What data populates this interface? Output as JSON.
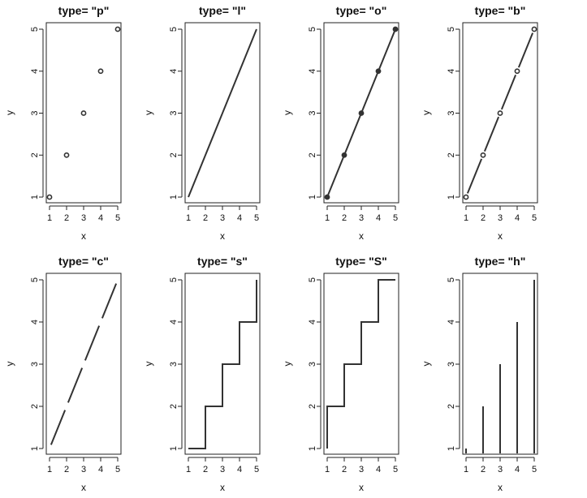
{
  "chart_data": [
    {
      "type": "scatter",
      "title": "type= \"p\"",
      "plot_type": "p",
      "xlabel": "x",
      "ylabel": "y",
      "x": [
        1,
        2,
        3,
        4,
        5
      ],
      "y": [
        1,
        2,
        3,
        4,
        5
      ],
      "xticks": [
        "1",
        "2",
        "3",
        "4",
        "5"
      ],
      "yticks": [
        "1",
        "2",
        "3",
        "4",
        "5"
      ],
      "xlim": [
        1,
        5
      ],
      "ylim": [
        1,
        5
      ]
    },
    {
      "type": "line",
      "title": "type= \"l\"",
      "plot_type": "l",
      "xlabel": "x",
      "ylabel": "y",
      "x": [
        1,
        2,
        3,
        4,
        5
      ],
      "y": [
        1,
        2,
        3,
        4,
        5
      ],
      "xticks": [
        "1",
        "2",
        "3",
        "4",
        "5"
      ],
      "yticks": [
        "1",
        "2",
        "3",
        "4",
        "5"
      ],
      "xlim": [
        1,
        5
      ],
      "ylim": [
        1,
        5
      ]
    },
    {
      "type": "line",
      "title": "type= \"o\"",
      "plot_type": "o",
      "xlabel": "x",
      "ylabel": "y",
      "x": [
        1,
        2,
        3,
        4,
        5
      ],
      "y": [
        1,
        2,
        3,
        4,
        5
      ],
      "xticks": [
        "1",
        "2",
        "3",
        "4",
        "5"
      ],
      "yticks": [
        "1",
        "2",
        "3",
        "4",
        "5"
      ],
      "xlim": [
        1,
        5
      ],
      "ylim": [
        1,
        5
      ]
    },
    {
      "type": "line",
      "title": "type= \"b\"",
      "plot_type": "b",
      "xlabel": "x",
      "ylabel": "y",
      "x": [
        1,
        2,
        3,
        4,
        5
      ],
      "y": [
        1,
        2,
        3,
        4,
        5
      ],
      "xticks": [
        "1",
        "2",
        "3",
        "4",
        "5"
      ],
      "yticks": [
        "1",
        "2",
        "3",
        "4",
        "5"
      ],
      "xlim": [
        1,
        5
      ],
      "ylim": [
        1,
        5
      ]
    },
    {
      "type": "line",
      "title": "type= \"c\"",
      "plot_type": "c",
      "xlabel": "x",
      "ylabel": "y",
      "x": [
        1,
        2,
        3,
        4,
        5
      ],
      "y": [
        1,
        2,
        3,
        4,
        5
      ],
      "xticks": [
        "1",
        "2",
        "3",
        "4",
        "5"
      ],
      "yticks": [
        "1",
        "2",
        "3",
        "4",
        "5"
      ],
      "xlim": [
        1,
        5
      ],
      "ylim": [
        1,
        5
      ]
    },
    {
      "type": "line",
      "title": "type= \"s\"",
      "plot_type": "s",
      "xlabel": "x",
      "ylabel": "y",
      "x": [
        1,
        2,
        3,
        4,
        5
      ],
      "y": [
        1,
        2,
        3,
        4,
        5
      ],
      "xticks": [
        "1",
        "2",
        "3",
        "4",
        "5"
      ],
      "yticks": [
        "1",
        "2",
        "3",
        "4",
        "5"
      ],
      "xlim": [
        1,
        5
      ],
      "ylim": [
        1,
        5
      ]
    },
    {
      "type": "line",
      "title": "type= \"S\"",
      "plot_type": "S",
      "xlabel": "x",
      "ylabel": "y",
      "x": [
        1,
        2,
        3,
        4,
        5
      ],
      "y": [
        1,
        2,
        3,
        4,
        5
      ],
      "xticks": [
        "1",
        "2",
        "3",
        "4",
        "5"
      ],
      "yticks": [
        "1",
        "2",
        "3",
        "4",
        "5"
      ],
      "xlim": [
        1,
        5
      ],
      "ylim": [
        1,
        5
      ]
    },
    {
      "type": "bar",
      "title": "type= \"h\"",
      "plot_type": "h",
      "xlabel": "x",
      "ylabel": "y",
      "x": [
        1,
        2,
        3,
        4,
        5
      ],
      "y": [
        1,
        2,
        3,
        4,
        5
      ],
      "xticks": [
        "1",
        "2",
        "3",
        "4",
        "5"
      ],
      "yticks": [
        "1",
        "2",
        "3",
        "4",
        "5"
      ],
      "xlim": [
        1,
        5
      ],
      "ylim": [
        1,
        5
      ]
    }
  ]
}
